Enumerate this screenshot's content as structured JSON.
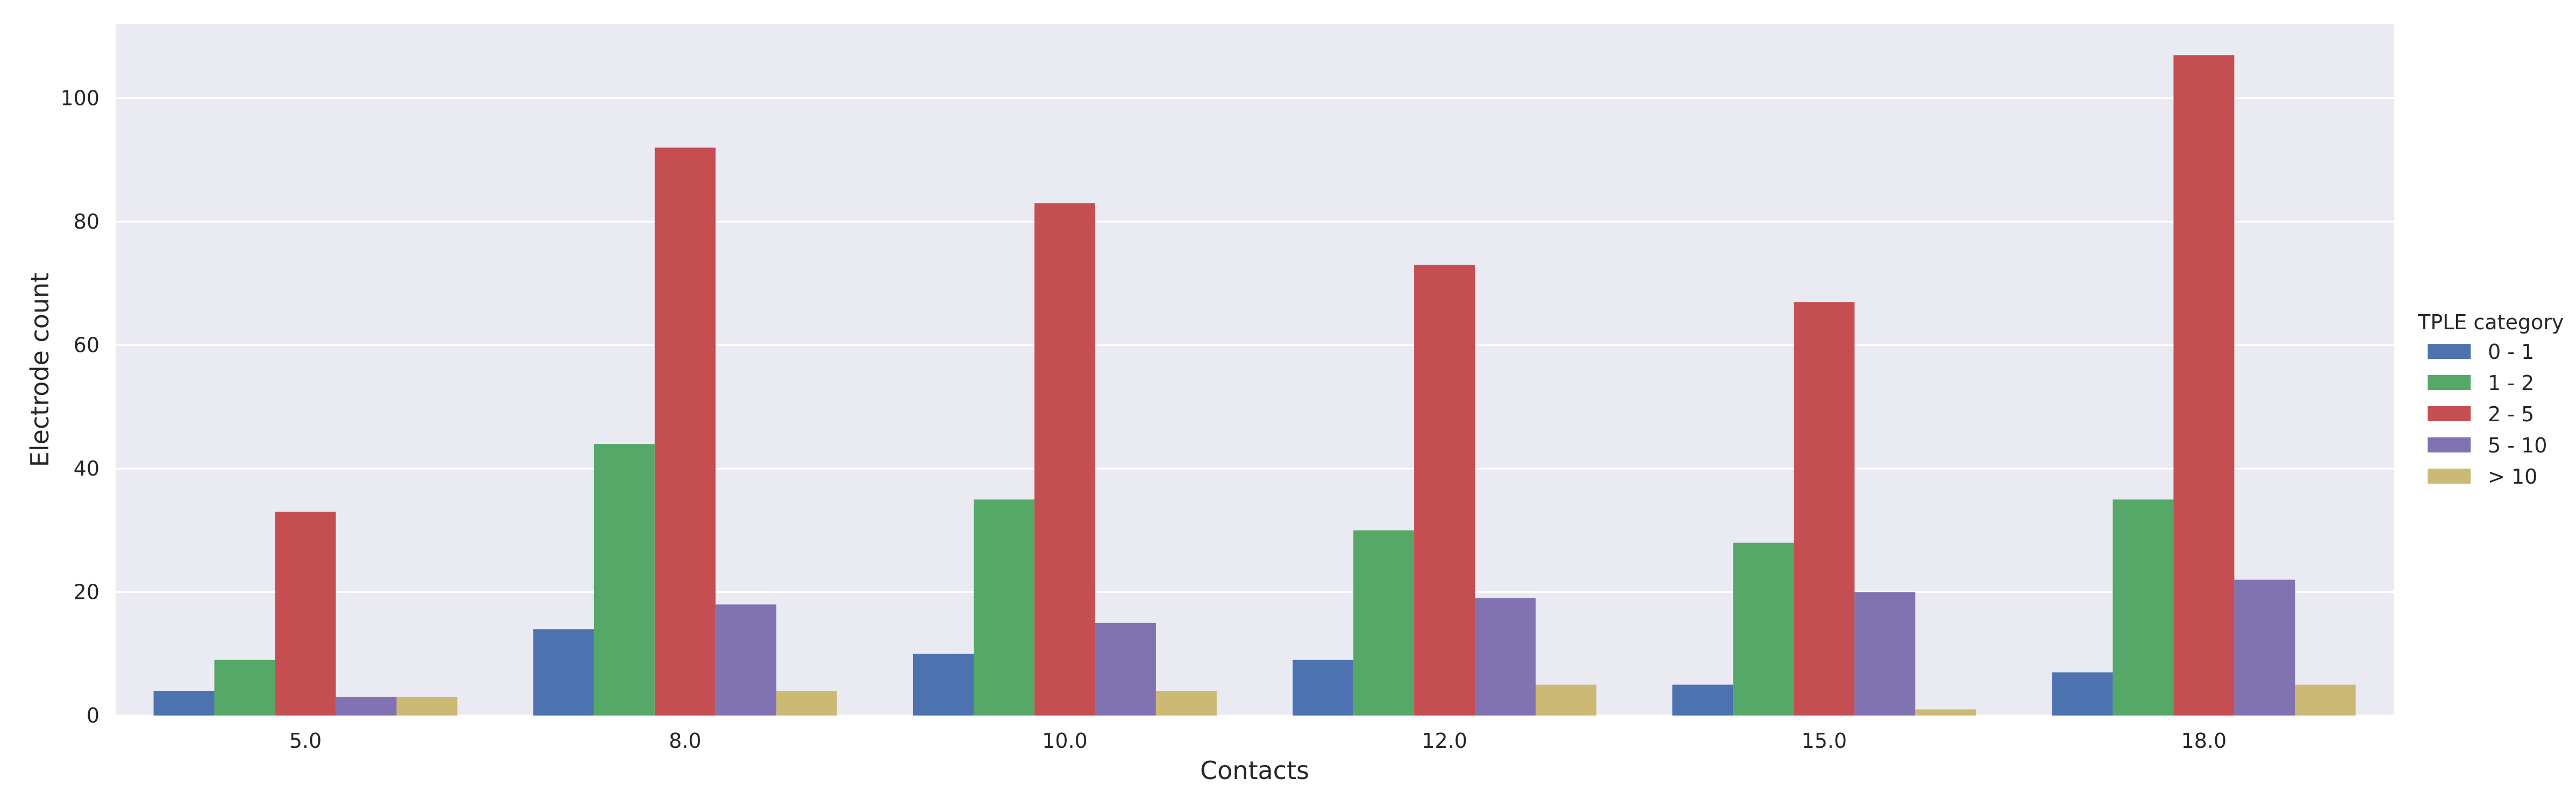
{
  "chart_data": {
    "type": "bar",
    "title": "",
    "xlabel": "Contacts",
    "ylabel": "Electrode count",
    "categories": [
      "5.0",
      "8.0",
      "10.0",
      "12.0",
      "15.0",
      "18.0"
    ],
    "ylim": [
      0,
      112
    ],
    "yticks": [
      0,
      20,
      40,
      60,
      80,
      100
    ],
    "grid": true,
    "background": "#eaeaf2",
    "legend": {
      "title": "TPLE category",
      "placement": "outside-right"
    },
    "series": [
      {
        "name": "0 - 1",
        "color": "#4c72b0",
        "values": [
          4,
          14,
          10,
          9,
          5,
          7
        ]
      },
      {
        "name": "1 - 2",
        "color": "#55a868",
        "values": [
          9,
          44,
          35,
          30,
          28,
          35
        ]
      },
      {
        "name": "2 - 5",
        "color": "#c44e52",
        "values": [
          33,
          92,
          83,
          73,
          67,
          107
        ]
      },
      {
        "name": "5 - 10",
        "color": "#8172b2",
        "values": [
          3,
          18,
          15,
          19,
          20,
          22
        ]
      },
      {
        "name": "> 10",
        "color": "#ccb974",
        "values": [
          3,
          4,
          4,
          5,
          1,
          5
        ]
      }
    ]
  }
}
